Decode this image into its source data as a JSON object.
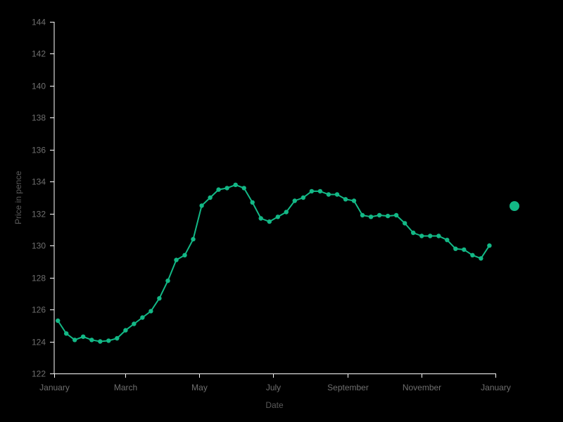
{
  "colors": {
    "background": "#000000",
    "series": "#13b886",
    "axis": "#ffffff",
    "tick_label": "#6f6f6f",
    "axis_title": "#5a5a5a"
  },
  "chart_data": {
    "type": "line",
    "title": "",
    "xlabel": "Date",
    "ylabel": "Price in pence",
    "x_domain": [
      "2021-01-01",
      "2022-01-01"
    ],
    "ylim": [
      122,
      144
    ],
    "x_ticks": [
      {
        "date": "2021-01-01",
        "label": "January"
      },
      {
        "date": "2021-03-01",
        "label": "March"
      },
      {
        "date": "2021-05-01",
        "label": "May"
      },
      {
        "date": "2021-07-01",
        "label": "July"
      },
      {
        "date": "2021-09-01",
        "label": "September"
      },
      {
        "date": "2021-11-01",
        "label": "November"
      },
      {
        "date": "2022-01-01",
        "label": "January"
      }
    ],
    "y_ticks": [
      122,
      124,
      126,
      128,
      130,
      132,
      134,
      136,
      138,
      140,
      142,
      144
    ],
    "grid": false,
    "series": [
      {
        "x": [
          "2021-01-04",
          "2021-01-11",
          "2021-01-18",
          "2021-01-25",
          "2021-02-01",
          "2021-02-08",
          "2021-02-15",
          "2021-02-22",
          "2021-03-01",
          "2021-03-08",
          "2021-03-15",
          "2021-03-22",
          "2021-03-29",
          "2021-04-05",
          "2021-04-12",
          "2021-04-19",
          "2021-04-26",
          "2021-05-03",
          "2021-05-10",
          "2021-05-17",
          "2021-05-24",
          "2021-05-31",
          "2021-06-07",
          "2021-06-14",
          "2021-06-21",
          "2021-06-28",
          "2021-07-05",
          "2021-07-12",
          "2021-07-19",
          "2021-07-26",
          "2021-08-02",
          "2021-08-09",
          "2021-08-16",
          "2021-08-23",
          "2021-08-30",
          "2021-09-06",
          "2021-09-13",
          "2021-09-20",
          "2021-09-27",
          "2021-10-04",
          "2021-10-11",
          "2021-10-18",
          "2021-10-25",
          "2021-11-01",
          "2021-11-08",
          "2021-11-15",
          "2021-11-22",
          "2021-11-29",
          "2021-12-06",
          "2021-12-13",
          "2021-12-20",
          "2021-12-27"
        ],
        "y": [
          125.3,
          124.5,
          124.1,
          124.3,
          124.1,
          124.0,
          124.05,
          124.2,
          124.7,
          125.1,
          125.5,
          125.9,
          126.7,
          127.8,
          129.1,
          129.4,
          130.4,
          132.5,
          133.0,
          133.5,
          133.6,
          133.8,
          133.6,
          132.7,
          131.7,
          131.5,
          131.8,
          132.1,
          132.8,
          133.0,
          133.4,
          133.4,
          133.2,
          133.2,
          132.9,
          132.8,
          131.9,
          131.8,
          131.9,
          131.85,
          131.9,
          131.4,
          130.8,
          130.6,
          130.6,
          130.6,
          130.35,
          129.8,
          129.75,
          129.4,
          129.2,
          130.0
        ]
      }
    ],
    "legend": {
      "marker": "circle",
      "position": "right"
    }
  }
}
